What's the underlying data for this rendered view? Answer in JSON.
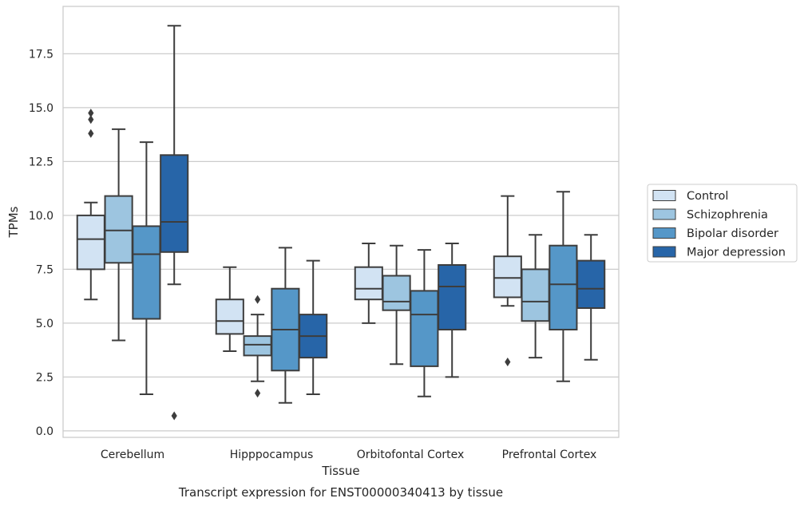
{
  "chart_data": {
    "type": "box",
    "caption": "Transcript expression for ENST00000340413 by tissue",
    "xlabel": "Tissue",
    "ylabel": "TPMs",
    "ylim": [
      -0.3,
      19.7
    ],
    "yticks": [
      0.0,
      2.5,
      5.0,
      7.5,
      10.0,
      12.5,
      15.0,
      17.5
    ],
    "ytick_labels": [
      "0.0",
      "2.5",
      "5.0",
      "7.5",
      "10.0",
      "12.5",
      "15.0",
      "17.5"
    ],
    "grid": true,
    "legend_position": "right",
    "categories": [
      "Cerebellum",
      "Hipppocampus",
      "Orbitofontal Cortex",
      "Prefrontal Cortex"
    ],
    "series": [
      {
        "name": "Control",
        "color": "#d2e3f3",
        "boxes": [
          {
            "whislo": 6.1,
            "q1": 7.5,
            "med": 8.9,
            "q3": 10.0,
            "whishi": 10.6,
            "fliers": [
              13.8,
              14.45,
              14.75
            ]
          },
          {
            "whislo": 3.7,
            "q1": 4.5,
            "med": 5.1,
            "q3": 6.1,
            "whishi": 7.6,
            "fliers": []
          },
          {
            "whislo": 5.0,
            "q1": 6.1,
            "med": 6.6,
            "q3": 7.6,
            "whishi": 8.7,
            "fliers": []
          },
          {
            "whislo": 5.8,
            "q1": 6.2,
            "med": 7.1,
            "q3": 8.1,
            "whishi": 10.9,
            "fliers": [
              3.2
            ]
          }
        ]
      },
      {
        "name": "Schizophrenia",
        "color": "#9dc5e0",
        "boxes": [
          {
            "whislo": 4.2,
            "q1": 7.8,
            "med": 9.3,
            "q3": 10.9,
            "whishi": 14.0,
            "fliers": []
          },
          {
            "whislo": 2.3,
            "q1": 3.5,
            "med": 4.0,
            "q3": 4.4,
            "whishi": 5.4,
            "fliers": [
              6.1,
              1.75
            ]
          },
          {
            "whislo": 3.1,
            "q1": 5.6,
            "med": 6.0,
            "q3": 7.2,
            "whishi": 8.6,
            "fliers": []
          },
          {
            "whislo": 3.4,
            "q1": 5.1,
            "med": 6.0,
            "q3": 7.5,
            "whishi": 9.1,
            "fliers": []
          }
        ]
      },
      {
        "name": "Bipolar disorder",
        "color": "#5597c8",
        "boxes": [
          {
            "whislo": 1.7,
            "q1": 5.2,
            "med": 8.2,
            "q3": 9.5,
            "whishi": 13.4,
            "fliers": []
          },
          {
            "whislo": 1.3,
            "q1": 2.8,
            "med": 4.7,
            "q3": 6.6,
            "whishi": 8.5,
            "fliers": []
          },
          {
            "whislo": 1.6,
            "q1": 3.0,
            "med": 5.4,
            "q3": 6.5,
            "whishi": 8.4,
            "fliers": []
          },
          {
            "whislo": 2.3,
            "q1": 4.7,
            "med": 6.8,
            "q3": 8.6,
            "whishi": 11.1,
            "fliers": []
          }
        ]
      },
      {
        "name": "Major depression",
        "color": "#2765a8",
        "boxes": [
          {
            "whislo": 6.8,
            "q1": 8.3,
            "med": 9.7,
            "q3": 12.8,
            "whishi": 18.8,
            "fliers": [
              0.7
            ]
          },
          {
            "whislo": 1.7,
            "q1": 3.4,
            "med": 4.4,
            "q3": 5.4,
            "whishi": 7.9,
            "fliers": []
          },
          {
            "whislo": 2.5,
            "q1": 4.7,
            "med": 6.7,
            "q3": 7.7,
            "whishi": 8.7,
            "fliers": []
          },
          {
            "whislo": 3.3,
            "q1": 5.7,
            "med": 6.6,
            "q3": 7.9,
            "whishi": 9.1,
            "fliers": []
          }
        ]
      }
    ]
  }
}
